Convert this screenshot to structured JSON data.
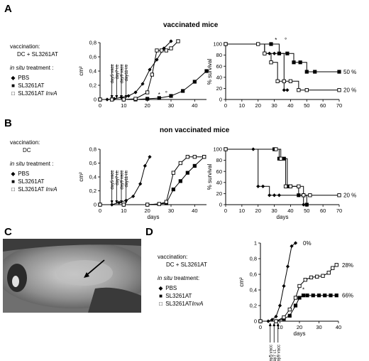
{
  "panels": {
    "A": {
      "letter": "A",
      "title": "vaccinated mice",
      "legend": {
        "vaccination_label": "vaccination:",
        "vaccination_value": "DC + SL3261AT",
        "treatment_em": "in situ",
        "treatment_rest": " treatment :",
        "items": [
          {
            "symbol": "◆",
            "label": "PBS"
          },
          {
            "symbol": "■",
            "label": "SL3261AT"
          },
          {
            "symbol": "□",
            "label": "SL3261AT",
            "italic_suffix": "InvA"
          }
        ]
      }
    },
    "B": {
      "letter": "B",
      "title": "non vaccinated mice",
      "legend": {
        "vaccination_label": "vaccination:",
        "vaccination_value": "DC",
        "treatment_em": "in situ",
        "treatment_rest": " treatment :",
        "items": [
          {
            "symbol": "◆",
            "label": "PBS"
          },
          {
            "symbol": "■",
            "label": "SL3261AT"
          },
          {
            "symbol": "□",
            "label": "SL3261AT",
            "italic_suffix": "InvA"
          }
        ]
      }
    },
    "C": {
      "letter": "C"
    },
    "D": {
      "letter": "D",
      "legend": {
        "vaccination_label": "vaccination:",
        "vaccination_value": "DC + SL3261AT",
        "treatment_em": "in situ",
        "treatment_rest": " treatment:",
        "items": [
          {
            "symbol": "◆",
            "label": "PBS"
          },
          {
            "symbol": "■",
            "label": "SL3261AT"
          },
          {
            "symbol": "□",
            "label": "SL3261AT",
            "italic_suffix": "InvA"
          }
        ]
      }
    }
  },
  "chart_data": [
    {
      "id": "A-growth",
      "type": "line",
      "xlabel": "",
      "ylabel": "cm²",
      "xlim": [
        0,
        45
      ],
      "ylim": [
        0,
        0.8
      ],
      "xticks": [
        0,
        10,
        20,
        30,
        40
      ],
      "yticks": [
        0,
        0.2,
        0.4,
        0.6,
        0.8
      ],
      "yticklabels": [
        "0",
        "0,2",
        "0,4",
        "0,6",
        "0,8"
      ],
      "annotations": [
        {
          "text": "day5 vacc",
          "x": 5
        },
        {
          "text": "day7 i.t.",
          "x": 7
        },
        {
          "text": "day9 vacc",
          "x": 9
        },
        {
          "text": "day11 i.t.",
          "x": 11
        }
      ],
      "markers_text": [
        {
          "text": "*",
          "x": 25,
          "y": 0.01
        },
        {
          "text": "°",
          "x": 28,
          "y": 0.03
        }
      ],
      "series": [
        {
          "marker": "diamond",
          "x": [
            0,
            3,
            6,
            9,
            12,
            15,
            18,
            21,
            24,
            27,
            30
          ],
          "y": [
            0,
            0,
            0.01,
            0.03,
            0.05,
            0.1,
            0.22,
            0.42,
            0.56,
            0.72,
            0.82
          ]
        },
        {
          "marker": "square",
          "x": [
            0,
            5,
            10,
            15,
            20,
            25,
            30,
            35,
            40,
            45
          ],
          "y": [
            0,
            0,
            0,
            0,
            0.01,
            0.02,
            0.05,
            0.12,
            0.25,
            0.4
          ]
        },
        {
          "marker": "open-square",
          "x": [
            0,
            5,
            10,
            15,
            20,
            22,
            24,
            26,
            28,
            30,
            33
          ],
          "y": [
            0,
            0,
            0,
            0.01,
            0.1,
            0.35,
            0.69,
            0.69,
            0.69,
            0.72,
            0.82
          ]
        }
      ]
    },
    {
      "id": "A-survival",
      "type": "line",
      "xlabel": "",
      "ylabel": "% survival",
      "xlim": [
        0,
        70
      ],
      "ylim": [
        0,
        100
      ],
      "xticks": [
        0,
        10,
        20,
        30,
        40,
        50,
        60,
        70
      ],
      "yticks": [
        0,
        20,
        40,
        60,
        80,
        100
      ],
      "markers_text": [
        {
          "text": "*",
          "x": 31,
          "y": 100
        },
        {
          "text": "°",
          "x": 37,
          "y": 100
        }
      ],
      "end_labels": [
        {
          "text": "50 %",
          "y": 50
        },
        {
          "text": "20 %",
          "y": 17
        }
      ],
      "series": [
        {
          "marker": "diamond",
          "x": [
            0,
            20,
            24,
            27,
            30,
            36,
            38
          ],
          "y": [
            100,
            100,
            83,
            83,
            83,
            17,
            17
          ]
        },
        {
          "marker": "square",
          "x": [
            0,
            28,
            33,
            38,
            42,
            46,
            50,
            55,
            70
          ],
          "y": [
            100,
            100,
            83,
            83,
            67,
            67,
            50,
            50,
            50
          ]
        },
        {
          "marker": "open-square",
          "x": [
            0,
            20,
            24,
            28,
            32,
            36,
            40,
            45,
            50,
            70
          ],
          "y": [
            100,
            100,
            83,
            67,
            33,
            33,
            33,
            17,
            17,
            17
          ]
        }
      ]
    },
    {
      "id": "B-growth",
      "type": "line",
      "xlabel": "days",
      "ylabel": "cm²",
      "xlim": [
        0,
        45
      ],
      "ylim": [
        0,
        0.8
      ],
      "xticks": [
        0,
        10,
        20,
        30,
        40
      ],
      "yticks": [
        0,
        0.2,
        0.4,
        0.6,
        0.8
      ],
      "yticklabels": [
        "0",
        "0,2",
        "0,4",
        "0,6",
        "0,8"
      ],
      "annotations": [
        {
          "text": "day5 vacc",
          "x": 5
        },
        {
          "text": "day7 i.t.",
          "x": 7
        },
        {
          "text": "day9 vacc",
          "x": 9
        },
        {
          "text": "day11 i.t.",
          "x": 11
        }
      ],
      "series": [
        {
          "marker": "diamond",
          "x": [
            0,
            5,
            8,
            11,
            14,
            17,
            19,
            21
          ],
          "y": [
            0,
            0,
            0.03,
            0.06,
            0.12,
            0.3,
            0.56,
            0.69
          ]
        },
        {
          "marker": "square",
          "x": [
            0,
            10,
            20,
            25,
            28,
            31,
            34,
            37,
            40,
            44
          ],
          "y": [
            0,
            0,
            0,
            0.01,
            0.02,
            0.22,
            0.34,
            0.46,
            0.56,
            0.69
          ]
        },
        {
          "marker": "open-square",
          "x": [
            0,
            10,
            20,
            25,
            28,
            31,
            34,
            37,
            40,
            44
          ],
          "y": [
            0,
            0,
            0,
            0.01,
            0.04,
            0.46,
            0.6,
            0.69,
            0.69,
            0.69
          ]
        }
      ]
    },
    {
      "id": "B-survival",
      "type": "line",
      "xlabel": "days",
      "ylabel": "% survival",
      "xlim": [
        0,
        70
      ],
      "ylim": [
        0,
        100
      ],
      "xticks": [
        0,
        10,
        20,
        30,
        40,
        50,
        60,
        70
      ],
      "yticks": [
        0,
        20,
        40,
        60,
        80,
        100
      ],
      "end_labels": [
        {
          "text": "20 %",
          "y": 17
        }
      ],
      "series": [
        {
          "marker": "diamond",
          "x": [
            0,
            17,
            20,
            23,
            27,
            30,
            33,
            45,
            48
          ],
          "y": [
            100,
            100,
            33,
            33,
            17,
            17,
            17,
            17,
            0
          ]
        },
        {
          "marker": "square",
          "x": [
            0,
            30,
            33,
            36,
            38,
            40,
            45,
            48,
            50
          ],
          "y": [
            100,
            100,
            83,
            83,
            33,
            33,
            17,
            17,
            0
          ]
        },
        {
          "marker": "open-square",
          "x": [
            0,
            31,
            34,
            37,
            40,
            45,
            48,
            52,
            70
          ],
          "y": [
            100,
            100,
            83,
            33,
            33,
            33,
            17,
            17,
            17
          ]
        }
      ]
    },
    {
      "id": "D-growth",
      "type": "line",
      "xlabel": "days",
      "ylabel": "cm²",
      "xlim": [
        0,
        40
      ],
      "ylim": [
        0,
        1
      ],
      "xticks": [
        0,
        10,
        20,
        30,
        40
      ],
      "yticks": [
        0,
        0.2,
        0.4,
        0.6,
        0.8,
        1
      ],
      "yticklabels": [
        "0",
        "0,2",
        "0,4",
        "0,6",
        "0,8",
        "1"
      ],
      "annotations": [
        {
          "text": "day5 vacc",
          "x": 5
        },
        {
          "text": "day7 i.t.",
          "x": 7
        },
        {
          "text": "day9 vacc",
          "x": 9
        }
      ],
      "markers_text": [
        {
          "text": "*",
          "x": 22,
          "y": 0.35
        }
      ],
      "end_labels": [
        {
          "text": "0%",
          "x": 20,
          "y": 1.0
        },
        {
          "text": "28%",
          "x": 40,
          "y": 0.72
        },
        {
          "text": "66%",
          "x": 40,
          "y": 0.33
        }
      ],
      "series": [
        {
          "marker": "diamond",
          "x": [
            0,
            4,
            6,
            8,
            10,
            12,
            14,
            16,
            18
          ],
          "y": [
            0,
            0,
            0.02,
            0.06,
            0.2,
            0.45,
            0.7,
            0.96,
            1.0
          ]
        },
        {
          "marker": "square",
          "x": [
            0,
            8,
            12,
            15,
            18,
            20,
            22,
            24,
            27,
            30,
            33,
            36,
            39
          ],
          "y": [
            0,
            0,
            0.03,
            0.07,
            0.2,
            0.3,
            0.33,
            0.33,
            0.33,
            0.33,
            0.33,
            0.33,
            0.33
          ]
        },
        {
          "marker": "open-square",
          "x": [
            0,
            8,
            12,
            15,
            18,
            20,
            23,
            26,
            29,
            32,
            35,
            37,
            39
          ],
          "y": [
            0,
            0,
            0.05,
            0.15,
            0.3,
            0.45,
            0.53,
            0.56,
            0.57,
            0.58,
            0.62,
            0.68,
            0.72
          ]
        }
      ]
    }
  ]
}
